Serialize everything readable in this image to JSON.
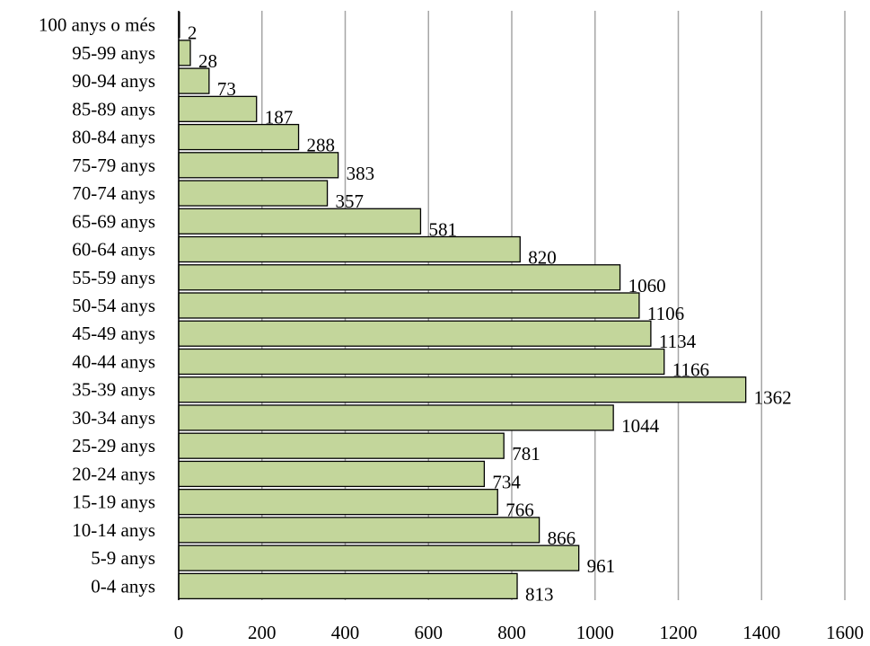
{
  "chart_data": {
    "type": "bar",
    "orientation": "horizontal",
    "categories": [
      "0-4 anys",
      "5-9 anys",
      "10-14 anys",
      "15-19 anys",
      "20-24 anys",
      "25-29 anys",
      "30-34 anys",
      "35-39 anys",
      "40-44 anys",
      "45-49 anys",
      "50-54 anys",
      "55-59 anys",
      "60-64 anys",
      "65-69 anys",
      "70-74 anys",
      "75-79 anys",
      "80-84 anys",
      "85-89 anys",
      "90-94 anys",
      "95-99 anys",
      "100 anys o més"
    ],
    "values": [
      813,
      961,
      866,
      766,
      734,
      781,
      1044,
      1362,
      1166,
      1134,
      1106,
      1060,
      820,
      581,
      357,
      383,
      288,
      187,
      73,
      28,
      2
    ],
    "xlim": [
      0,
      1600
    ],
    "xticks": [
      0,
      200,
      400,
      600,
      800,
      1000,
      1200,
      1400,
      1600
    ],
    "title": "",
    "xlabel": "",
    "ylabel": "",
    "grid": "vertical",
    "legend": "none",
    "bar_color": "#c3d69b",
    "bar_edge": "#000000",
    "grid_color": "#a6a6a6"
  }
}
